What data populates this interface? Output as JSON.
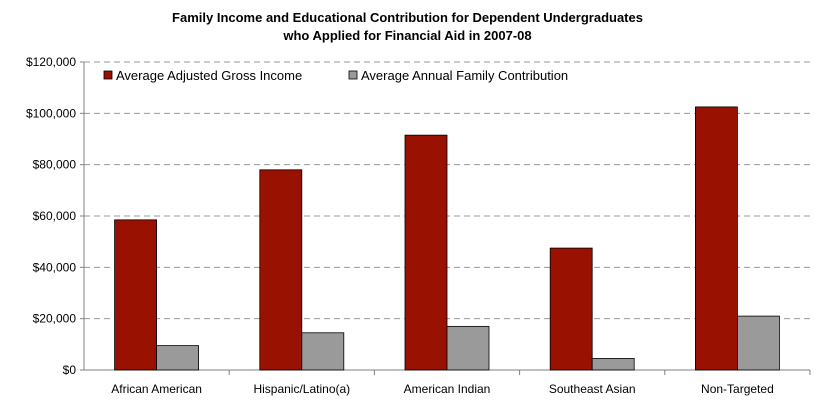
{
  "chart_data": {
    "type": "bar",
    "title": "Family Income and Educational Contribution for Dependent Undergraduates",
    "subtitle": "who Applied for Financial Aid in 2007-08",
    "xlabel": "",
    "ylabel": "",
    "ylim": [
      0,
      120000
    ],
    "yticks": [
      0,
      20000,
      40000,
      60000,
      80000,
      100000,
      120000
    ],
    "ytick_labels": [
      "$0",
      "$20,000",
      "$40,000",
      "$60,000",
      "$80,000",
      "$100,000",
      "$120,000"
    ],
    "grid": true,
    "legend_position": "top-left",
    "categories": [
      "African American",
      "Hispanic/Latino(a)",
      "American Indian",
      "Southeast Asian",
      "Non-Targeted"
    ],
    "series": [
      {
        "name": "Average Adjusted Gross Income",
        "color": "#991100",
        "values": [
          58500,
          78000,
          91500,
          47500,
          102500
        ]
      },
      {
        "name": "Average Annual Family Contribution",
        "color": "#9a9a9a",
        "values": [
          9500,
          14500,
          17000,
          4500,
          21000
        ]
      }
    ]
  }
}
